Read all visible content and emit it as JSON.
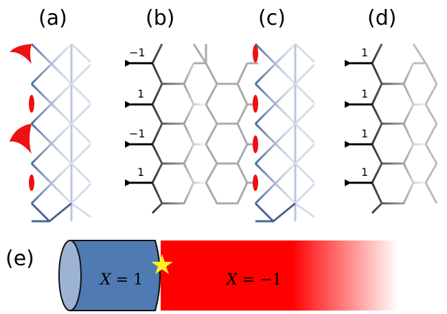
{
  "panels": [
    {
      "label": "(a)"
    },
    {
      "label": "(b)",
      "arrow_labels": [
        "−1",
        "1",
        "−1",
        "1"
      ]
    },
    {
      "label": "(c)"
    },
    {
      "label": "(d)",
      "arrow_labels": [
        "1",
        "1",
        "1",
        "1"
      ]
    },
    {
      "label": "(e)"
    }
  ],
  "cylinder": {
    "left_region": {
      "var": "X",
      "eq": " = ",
      "val": "1",
      "color": "#4f7ab2"
    },
    "right_region": {
      "var": "X",
      "eq": " = ",
      "val": "−1",
      "color": "#ff0000"
    },
    "star_color": "#ffee22"
  },
  "colors": {
    "lattice_blue": "#48648e",
    "lattice_gray": "#3a3a3a",
    "red_mark": "#ee1111"
  }
}
